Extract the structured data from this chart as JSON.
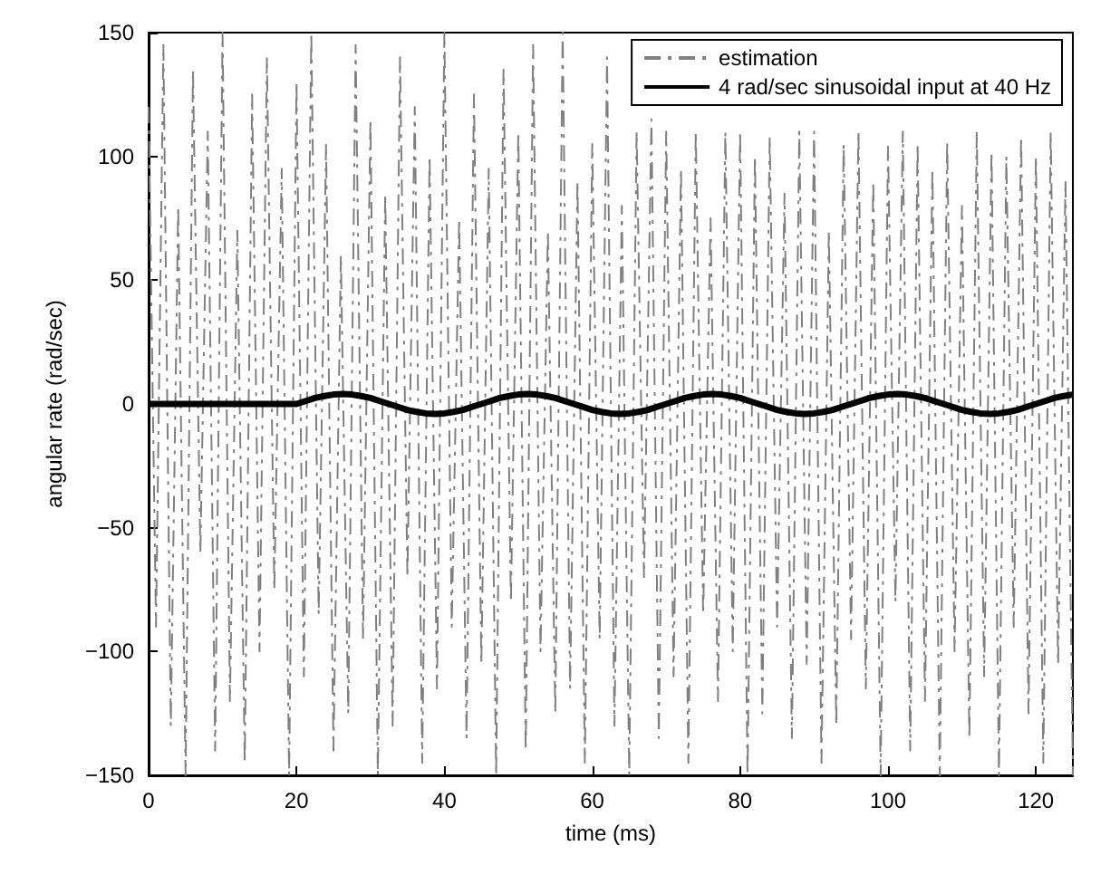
{
  "chart_data": {
    "type": "line",
    "xlabel": "time (ms)",
    "ylabel": "angular rate (rad/sec)",
    "xlim": [
      0,
      125
    ],
    "xticks": [
      0,
      20,
      40,
      60,
      80,
      100,
      120
    ],
    "ylim": [
      -150,
      150
    ],
    "yticks": [
      -150,
      -100,
      -50,
      0,
      50,
      100,
      150
    ],
    "grid": false,
    "legend": "top right",
    "marker": "none",
    "series": [
      {
        "name": "estimation",
        "color": "#808080",
        "line_style": "dashed",
        "x": [
          0,
          1,
          2,
          3,
          4,
          5,
          6,
          7,
          8,
          9,
          10,
          11,
          12,
          13,
          14,
          15,
          16,
          17,
          18,
          19,
          20,
          21,
          22,
          23,
          24,
          25,
          26,
          27,
          28,
          29,
          30,
          31,
          32,
          33,
          34,
          35,
          36,
          37,
          38,
          39,
          40,
          41,
          42,
          43,
          44,
          45,
          46,
          47,
          48,
          49,
          50,
          51,
          52,
          53,
          54,
          55,
          56,
          57,
          58,
          59,
          60,
          61,
          62,
          63,
          64,
          65,
          66,
          67,
          68,
          69,
          70,
          71,
          72,
          73,
          74,
          75,
          76,
          77,
          78,
          79,
          80,
          81,
          82,
          83,
          84,
          85,
          86,
          87,
          88,
          89,
          90,
          91,
          92,
          93,
          94,
          95,
          96,
          97,
          98,
          99,
          100,
          101,
          102,
          103,
          104,
          105,
          106,
          107,
          108,
          109,
          110,
          111,
          112,
          113,
          114,
          115,
          116,
          117,
          118,
          119,
          120,
          121,
          122,
          123,
          124,
          125
        ],
        "values": [
          120,
          -90,
          145,
          -130,
          80,
          -150,
          135,
          -60,
          110,
          -140,
          150,
          -120,
          70,
          -145,
          125,
          -100,
          140,
          -75,
          95,
          -150,
          130,
          -110,
          150,
          -85,
          105,
          -140,
          60,
          -125,
          145,
          -95,
          115,
          -150,
          85,
          -130,
          140,
          -70,
          120,
          -145,
          100,
          -115,
          150,
          -90,
          75,
          -135,
          125,
          -105,
          95,
          -150,
          135,
          -80,
          110,
          -140,
          145,
          -100,
          70,
          -125,
          150,
          -115,
          90,
          -145,
          105,
          -95,
          140,
          -130,
          80,
          -150,
          110,
          -70,
          115,
          -135,
          110,
          -110,
          95,
          -145,
          110,
          -85,
          75,
          -120,
          110,
          -100,
          110,
          -150,
          100,
          -125,
          108,
          -90,
          85,
          -135,
          110,
          -105,
          110,
          -145,
          70,
          -130,
          105,
          -95,
          110,
          -115,
          90,
          -150,
          104,
          -80,
          110,
          -140,
          105,
          -120,
          95,
          -150,
          106,
          -100,
          80,
          -135,
          110,
          -110,
          102,
          -150,
          100,
          -90,
          108,
          -125,
          100,
          -145,
          110,
          -105,
          90,
          -150
        ]
      },
      {
        "name": "4 rad/sec sinusoidal input at 40 Hz",
        "color": "#000000",
        "line_style": "solid",
        "x": [
          0,
          20,
          21.25,
          22.5,
          23.75,
          25,
          26.25,
          27.5,
          28.75,
          30,
          31.25,
          32.5,
          33.75,
          35,
          36.25,
          37.5,
          38.75,
          40,
          41.25,
          42.5,
          43.75,
          45,
          46.25,
          47.5,
          48.75,
          50,
          51.25,
          52.5,
          53.75,
          55,
          56.25,
          57.5,
          58.75,
          60,
          61.25,
          62.5,
          63.75,
          65,
          66.25,
          67.5,
          68.75,
          70,
          71.25,
          72.5,
          73.75,
          75,
          76.25,
          77.5,
          78.75,
          80,
          81.25,
          82.5,
          83.75,
          85,
          86.25,
          87.5,
          88.75,
          90,
          91.25,
          92.5,
          93.75,
          95,
          96.25,
          97.5,
          98.75,
          100,
          101.25,
          102.5,
          103.75,
          105,
          106.25,
          107.5,
          108.75,
          110,
          111.25,
          112.5,
          113.75,
          115,
          116.25,
          117.5,
          118.75,
          120,
          121.25,
          122.5,
          123.75,
          125
        ],
        "values": [
          0,
          0,
          1.2,
          2.4,
          3.2,
          3.8,
          4,
          3.8,
          3.2,
          2.4,
          1.2,
          0,
          -1.2,
          -2.4,
          -3.2,
          -3.8,
          -4,
          -3.8,
          -3.2,
          -2.4,
          -1.2,
          0,
          1.2,
          2.4,
          3.2,
          3.8,
          4,
          3.8,
          3.2,
          2.4,
          1.2,
          0,
          -1.2,
          -2.4,
          -3.2,
          -3.8,
          -4,
          -3.8,
          -3.2,
          -2.4,
          -1.2,
          0,
          1.2,
          2.4,
          3.2,
          3.8,
          4,
          3.8,
          3.2,
          2.4,
          1.2,
          0,
          -1.2,
          -2.4,
          -3.2,
          -3.8,
          -4,
          -3.8,
          -3.2,
          -2.4,
          -1.2,
          0,
          1.2,
          2.4,
          3.2,
          3.8,
          4,
          3.8,
          3.2,
          2.4,
          1.2,
          0,
          -1.2,
          -2.4,
          -3.2,
          -3.8,
          -4,
          -3.8,
          -3.2,
          -2.4,
          -1.2,
          0,
          1.2,
          2.4,
          3.2,
          3.8
        ]
      }
    ]
  }
}
